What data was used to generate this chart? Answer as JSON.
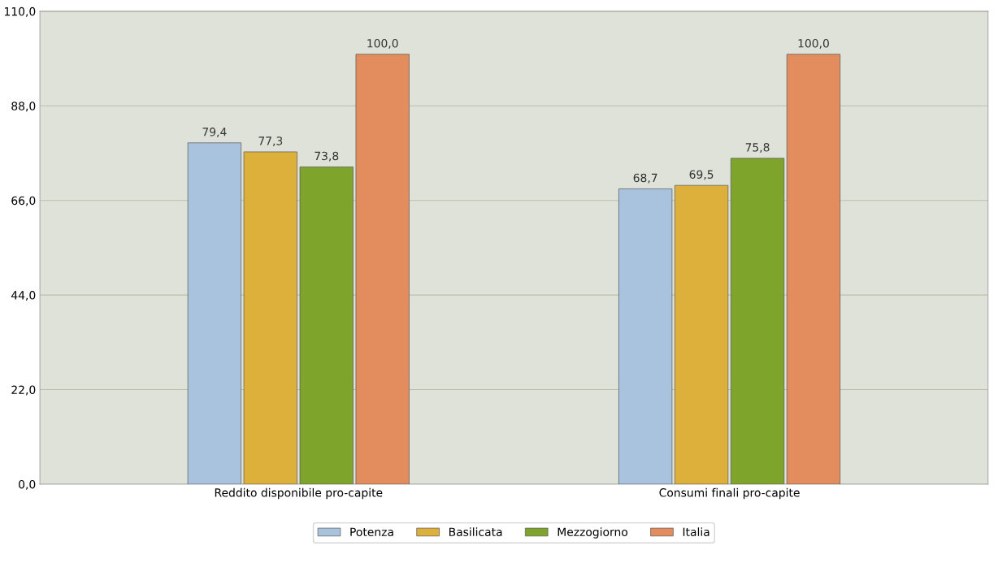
{
  "chart_data": {
    "type": "bar",
    "categories": [
      "Reddito disponibile pro-capite",
      "Consumi finali pro-capite"
    ],
    "series": [
      {
        "name": "Potenza",
        "color": "#a9c3df",
        "values": [
          79.4,
          68.7
        ],
        "value_labels": [
          "79,4",
          "68,7"
        ]
      },
      {
        "name": "Basilicata",
        "color": "#ddb03c",
        "values": [
          77.3,
          69.5
        ],
        "value_labels": [
          "77,3",
          "69,5"
        ]
      },
      {
        "name": "Mezzogiorno",
        "color": "#7fa42c",
        "values": [
          73.8,
          75.8
        ],
        "value_labels": [
          "73,8",
          "75,8"
        ]
      },
      {
        "name": "Italia",
        "color": "#e38c5e",
        "values": [
          100.0,
          100.0
        ],
        "value_labels": [
          "100,0",
          "100,0"
        ]
      }
    ],
    "ylim": [
      0,
      110
    ],
    "yticks": [
      {
        "value": 0,
        "label": "0,0"
      },
      {
        "value": 22,
        "label": "22,0"
      },
      {
        "value": 44,
        "label": "44,0"
      },
      {
        "value": 66,
        "label": "66,0"
      },
      {
        "value": 88,
        "label": "88,0"
      },
      {
        "value": 110,
        "label": "110,0"
      }
    ],
    "grid": "y",
    "legend": "bottom"
  }
}
